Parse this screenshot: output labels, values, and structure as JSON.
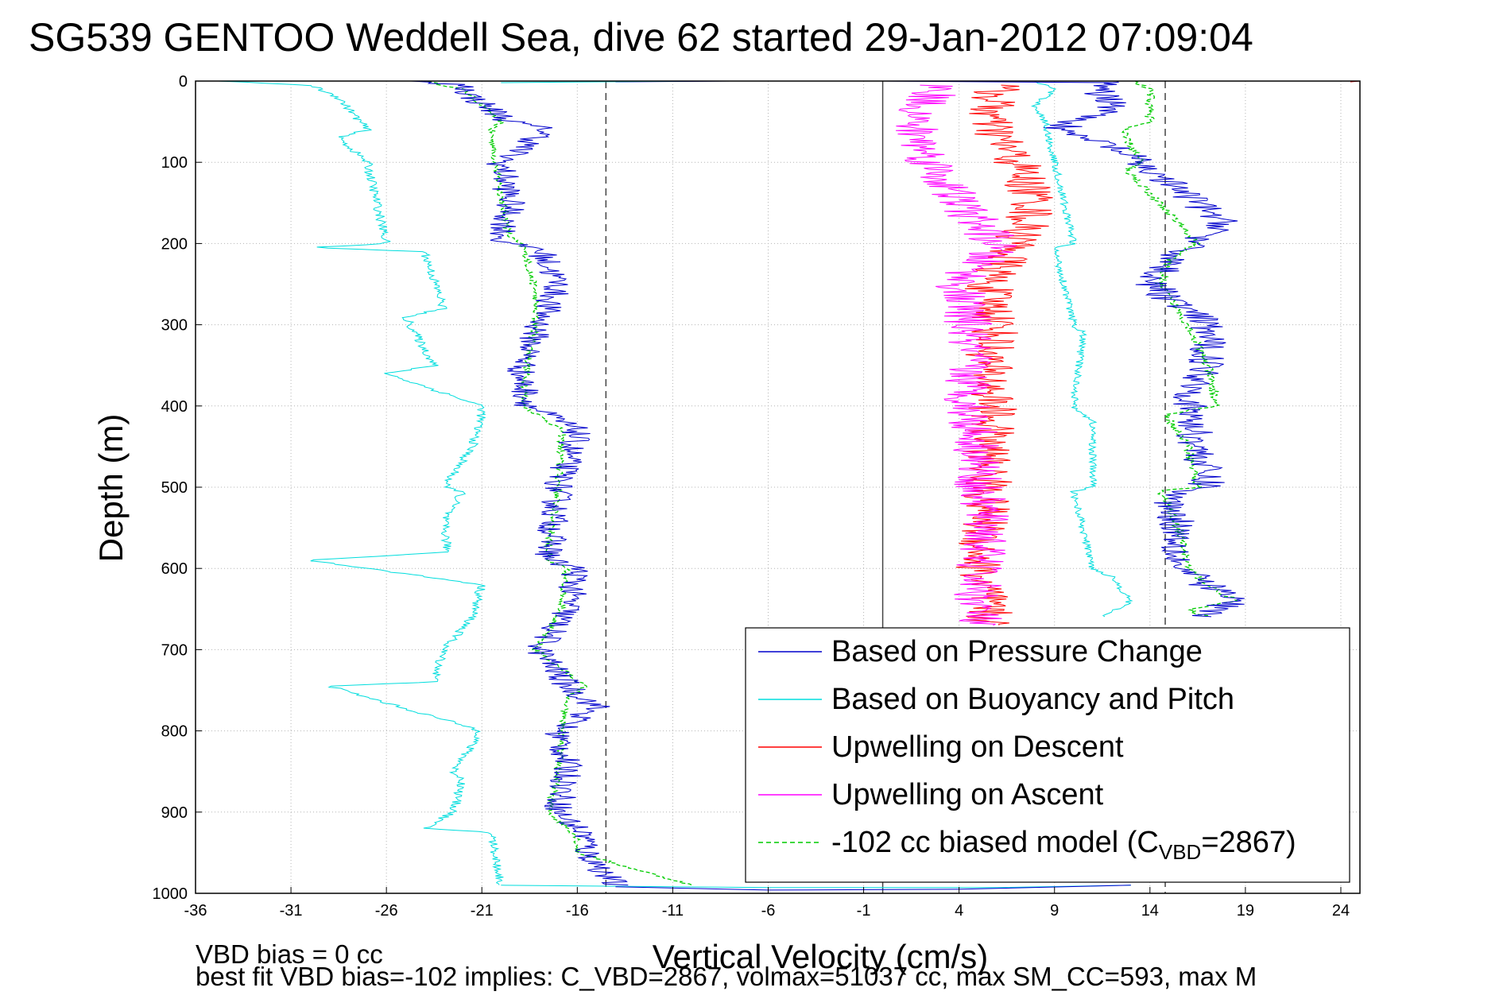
{
  "chart_data": {
    "type": "line",
    "title": "SG539 GENTOO Weddell Sea, dive 62 started 29-Jan-2012 07:09:04",
    "xlabel": "Vertical Velocity (cm/s)",
    "ylabel": "Depth (m)",
    "xlim": [
      -36,
      25
    ],
    "ylim": [
      0,
      1000
    ],
    "y_reversed": true,
    "grid": true,
    "x_ticks": [
      -36,
      -31,
      -26,
      -21,
      -16,
      -11,
      -6,
      -1,
      4,
      9,
      14,
      19,
      24
    ],
    "x_tick_labels": [
      "-36",
      "-31",
      "-26",
      "-21",
      "-16",
      "-11",
      "-6",
      "-1",
      "4",
      "9",
      "14",
      "19",
      "24"
    ],
    "y_ticks": [
      0,
      100,
      200,
      300,
      400,
      500,
      600,
      700,
      800,
      900,
      1000
    ],
    "y_tick_labels": [
      "0",
      "100",
      "200",
      "300",
      "400",
      "500",
      "600",
      "700",
      "800",
      "900",
      "1000"
    ],
    "reference_lines": {
      "dashed_x": [
        -14.5,
        14.8
      ],
      "solid_x": [
        0
      ]
    },
    "legend_position": "bottom-right",
    "legend": [
      {
        "label": "Based on Pressure Change",
        "color": "#0000cc",
        "style": "solid"
      },
      {
        "label": "Based on Buoyancy and Pitch",
        "color": "#00dddd",
        "style": "solid"
      },
      {
        "label": "Upwelling on Descent",
        "color": "#ff0000",
        "style": "solid"
      },
      {
        "label": "Upwelling on Ascent",
        "color": "#ff00ff",
        "style": "solid"
      },
      {
        "label_pre": "-102 cc biased model (C",
        "label_sub": "VBD",
        "label_post": "=2867)",
        "color": "#00cc00",
        "style": "dashed"
      }
    ],
    "series": [
      {
        "key": "model_descent",
        "color": "#00cc00",
        "dashed": true,
        "noise": 0.2,
        "depth": [
          0,
          10,
          50,
          60,
          100,
          150,
          190,
          205,
          260,
          300,
          360,
          400,
          430,
          500,
          590,
          600,
          650,
          700,
          745,
          760,
          800,
          850,
          900,
          930,
          950,
          990
        ],
        "velocity": [
          -24,
          -22,
          -20,
          -20.5,
          -20.3,
          -19.9,
          -19.6,
          -18.8,
          -18.2,
          -18.2,
          -18.7,
          -18.8,
          -16.8,
          -17,
          -17.6,
          -16.6,
          -16.8,
          -18.2,
          -15.6,
          -16.6,
          -16.8,
          -17,
          -17.5,
          -16,
          -16,
          -10
        ]
      },
      {
        "key": "pressure_descent",
        "color": "#0000cc",
        "dashed": false,
        "noise": 0.8,
        "depth": [
          0,
          5,
          20,
          50,
          60,
          100,
          150,
          200,
          205,
          250,
          300,
          360,
          400,
          430,
          500,
          590,
          600,
          650,
          700,
          745,
          770,
          800,
          850,
          900,
          930,
          950,
          990
        ],
        "velocity": [
          -25,
          -22,
          -21.5,
          -19.5,
          -17.5,
          -20,
          -19.5,
          -20,
          -18,
          -17,
          -18,
          -19,
          -18.5,
          -16,
          -17,
          -17.5,
          -16,
          -16.5,
          -18,
          -16.5,
          -15,
          -17,
          -16.5,
          -17,
          -15.5,
          -15.5,
          -14
        ]
      },
      {
        "key": "buoyancy_descent",
        "color": "#00dddd",
        "dashed": false,
        "noise": 0.25,
        "depth": [
          0,
          5,
          20,
          60,
          70,
          100,
          200,
          205,
          210,
          280,
          290,
          350,
          360,
          380,
          400,
          410,
          450,
          500,
          505,
          540,
          580,
          590,
          620,
          660,
          700,
          740,
          745,
          800,
          850,
          860,
          900,
          920,
          925,
          990
        ],
        "velocity": [
          -35,
          -30,
          -28.5,
          -27,
          -28.5,
          -27,
          -26,
          -30,
          -24,
          -23,
          -25,
          -23.5,
          -26,
          -23.5,
          -21,
          -21,
          -21.5,
          -23,
          -22,
          -23,
          -22.8,
          -30,
          -21,
          -21.5,
          -23,
          -23.5,
          -29,
          -21,
          -22.5,
          -22,
          -22.5,
          -24,
          -20.5,
          -20
        ]
      },
      {
        "key": "upwell_descent",
        "color": "#ff0000",
        "dashed": false,
        "noise": 1.3,
        "depth": [
          5,
          50,
          100,
          150,
          200,
          250,
          300,
          350,
          400,
          450,
          500,
          550,
          600,
          650,
          670
        ],
        "velocity": [
          6,
          5.5,
          7,
          8,
          7,
          5.5,
          6,
          5.5,
          5.8,
          5.5,
          5.5,
          5.3,
          5,
          5.5,
          5.5
        ]
      },
      {
        "key": "upwell_ascent",
        "color": "#ff00ff",
        "dashed": false,
        "noise": 1.3,
        "depth": [
          5,
          50,
          100,
          150,
          200,
          250,
          300,
          350,
          400,
          450,
          500,
          550,
          600,
          650,
          670
        ],
        "velocity": [
          3,
          1.5,
          2.5,
          4,
          6,
          4,
          4.5,
          4.5,
          4.5,
          5,
          5,
          5.5,
          5,
          5,
          5
        ]
      },
      {
        "key": "model_ascent",
        "color": "#00cc00",
        "dashed": true,
        "noise": 0.25,
        "depth": [
          0,
          10,
          50,
          60,
          100,
          110,
          150,
          200,
          220,
          250,
          300,
          350,
          400,
          410,
          450,
          500,
          505,
          550,
          600,
          620,
          640,
          650,
          660
        ],
        "velocity": [
          13,
          14,
          14,
          12.5,
          13.5,
          12.8,
          14.5,
          16.5,
          15,
          14.5,
          16,
          17,
          17.5,
          14.8,
          16,
          16.5,
          14.5,
          15.5,
          16,
          17,
          18.5,
          16,
          17
        ]
      },
      {
        "key": "pressure_ascent",
        "color": "#0000cc",
        "dashed": false,
        "noise": 1.0,
        "depth": [
          0,
          10,
          30,
          60,
          80,
          110,
          150,
          180,
          200,
          250,
          300,
          350,
          400,
          450,
          500,
          510,
          550,
          600,
          620,
          640,
          660
        ],
        "velocity": [
          12,
          11,
          12.5,
          9,
          12,
          14,
          16.5,
          18,
          16,
          14,
          17,
          17,
          16,
          16.5,
          17,
          15,
          15.5,
          15.5,
          17,
          18.5,
          16.5
        ]
      },
      {
        "key": "buoyancy_ascent",
        "color": "#00dddd",
        "dashed": false,
        "noise": 0.2,
        "depth": [
          0,
          10,
          30,
          50,
          100,
          200,
          205,
          250,
          300,
          310,
          400,
          420,
          500,
          505,
          600,
          610,
          640,
          660
        ],
        "velocity": [
          8,
          9,
          8,
          8.5,
          9,
          10,
          9,
          9.5,
          10,
          10.5,
          10,
          11,
          11,
          10,
          11,
          12,
          13,
          11.5
        ]
      },
      {
        "key": "surface_spike",
        "color": "#ff0000",
        "dashed": false,
        "noise": 0,
        "depth": [
          0,
          0,
          1
        ],
        "velocity": [
          14,
          25,
          24.5
        ]
      },
      {
        "key": "bottom_turn",
        "color": "#00dddd",
        "dashed": false,
        "noise": 0,
        "depth": [
          990,
          993,
          993,
          990
        ],
        "velocity": [
          -20,
          -6,
          6,
          13
        ]
      },
      {
        "key": "bottom_turn_pressure",
        "color": "#0000cc",
        "dashed": false,
        "noise": 0,
        "depth": [
          992,
          996,
          995,
          990
        ],
        "velocity": [
          -14,
          -6,
          4,
          13
        ]
      },
      {
        "key": "surface_mix",
        "color": "#0000cc",
        "dashed": false,
        "noise": 0,
        "depth": [
          1,
          0,
          0,
          2
        ],
        "velocity": [
          -14,
          -8,
          0,
          12
        ]
      },
      {
        "key": "surface_mix_cyan",
        "color": "#00dddd",
        "dashed": false,
        "noise": 0,
        "depth": [
          2,
          0,
          0
        ],
        "velocity": [
          -20,
          -10,
          4
        ]
      }
    ],
    "footer": {
      "line1": "VBD bias = 0 cc",
      "line2": "best fit VBD bias=-102 implies: C_VBD=2867, volmax=51037 cc, max SM_CC=593, max M"
    }
  }
}
